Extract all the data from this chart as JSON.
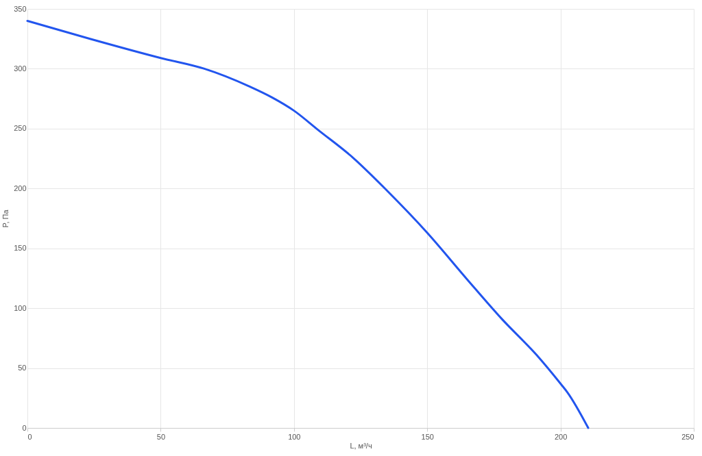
{
  "chart_data": {
    "type": "line",
    "xlabel": "L, м³/ч",
    "ylabel": "P, Па",
    "x": [
      0,
      23.5,
      50,
      66.4,
      83.5,
      91.8,
      100,
      109,
      122,
      135,
      150,
      165,
      178,
      191,
      200,
      202.5,
      210.4
    ],
    "series": [
      {
        "color": "#2255ee",
        "values": [
          340,
          325,
          309,
          300,
          285,
          276,
          265,
          249,
          226,
          198,
          163,
          124,
          91,
          61,
          37,
          30,
          0
        ]
      }
    ],
    "xlim": [
      0,
      250
    ],
    "xticks": [
      0,
      50,
      100,
      150,
      200,
      250
    ],
    "ylim": [
      0,
      350
    ],
    "yticks": [
      0,
      50,
      100,
      150,
      200,
      250,
      300,
      350
    ],
    "grid": true,
    "marker": "none",
    "line_style": "solid"
  }
}
